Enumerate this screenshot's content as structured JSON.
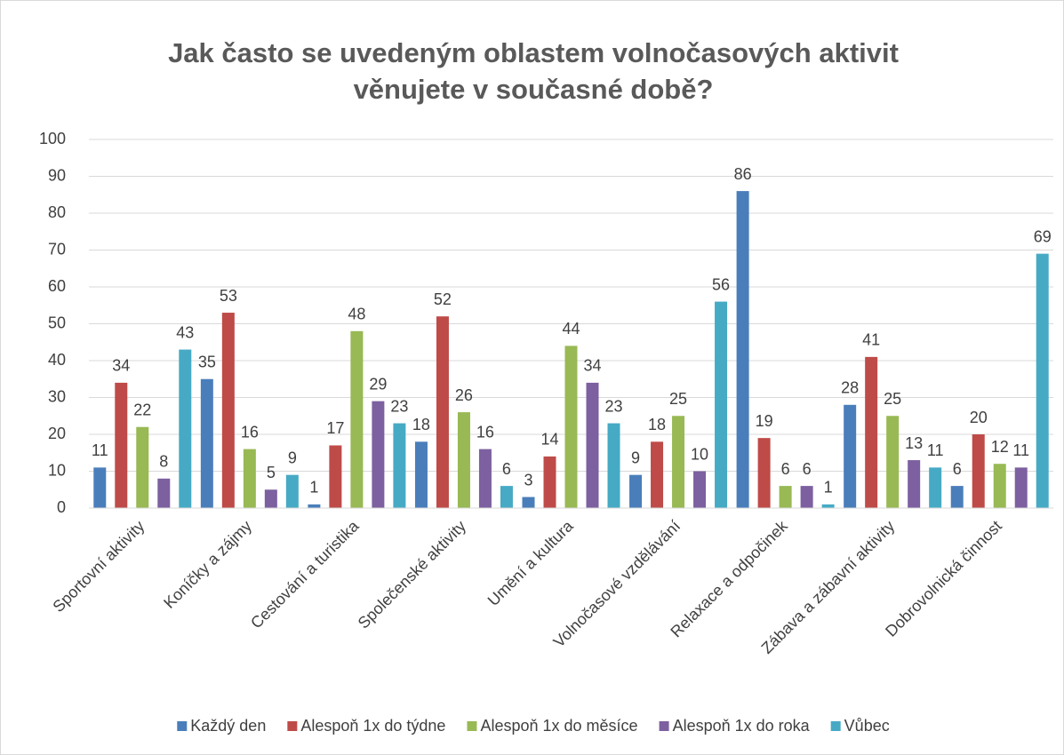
{
  "chart_data": {
    "type": "bar",
    "title": [
      "Jak často se uvedeným oblastem volnočasových aktivit",
      "věnujete v současné době?"
    ],
    "categories": [
      "Sportovní aktivity",
      "Koníčky a zájmy",
      "Cestování a turistika",
      "Společenské aktivity",
      "Umění a kultura",
      "Volnočasové vzdělávání",
      "Relaxace a odpočinek",
      "Zábava a zábavní aktivity",
      "Dobrovolnická činnost"
    ],
    "series": [
      {
        "name": "Každý den",
        "color": "#4a7ebb",
        "values": [
          11,
          35,
          1,
          18,
          3,
          9,
          86,
          28,
          6
        ]
      },
      {
        "name": "Alespoň 1x do týdne",
        "color": "#be4b48",
        "values": [
          34,
          53,
          17,
          52,
          14,
          18,
          19,
          41,
          20
        ]
      },
      {
        "name": "Alespoň 1x do měsíce",
        "color": "#98b954",
        "values": [
          22,
          16,
          48,
          26,
          44,
          25,
          6,
          25,
          12
        ]
      },
      {
        "name": "Alespoň 1x do roka",
        "color": "#7d60a0",
        "values": [
          8,
          5,
          29,
          16,
          34,
          10,
          6,
          13,
          11
        ]
      },
      {
        "name": "Vůbec",
        "color": "#46aac5",
        "values": [
          43,
          9,
          23,
          6,
          23,
          56,
          1,
          11,
          69
        ]
      }
    ],
    "ylim": [
      0,
      100
    ],
    "yticks": [
      0,
      10,
      20,
      30,
      40,
      50,
      60,
      70,
      80,
      90,
      100
    ],
    "grid": true,
    "legend": "bottom"
  }
}
